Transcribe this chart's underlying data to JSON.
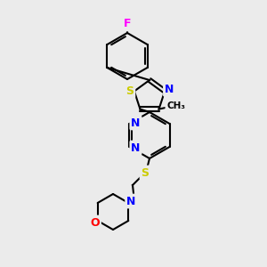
{
  "background_color": "#ebebeb",
  "bond_color": "#000000",
  "atom_colors": {
    "F": "#ff00ff",
    "S": "#cccc00",
    "N": "#0000ff",
    "O": "#ff0000",
    "C": "#000000"
  },
  "figsize": [
    3.0,
    3.0
  ],
  "dpi": 100
}
